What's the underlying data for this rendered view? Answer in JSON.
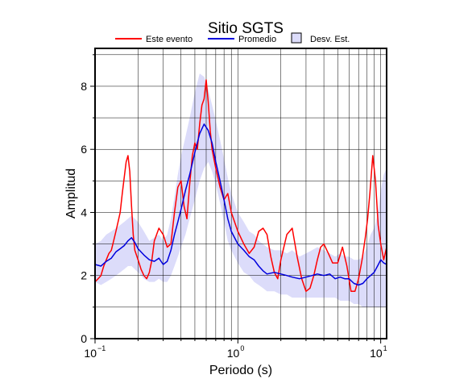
{
  "chart_data": {
    "type": "line",
    "title": "Sitio SGTS",
    "xlabel": "Periodo (s)",
    "ylabel": "Amplitud",
    "xscale": "log",
    "xlim": [
      0.1,
      11
    ],
    "ylim": [
      0,
      9.2
    ],
    "grid": true,
    "legend_position": "top",
    "x_ticks": [
      {
        "base": "10",
        "exp": "−1",
        "value": 0.1
      },
      {
        "base": "10",
        "exp": "0",
        "value": 1
      },
      {
        "base": "10",
        "exp": "1",
        "value": 10
      }
    ],
    "y_ticks": [
      0,
      2,
      4,
      6,
      8
    ],
    "legend": [
      {
        "label": "Este evento",
        "kind": "line",
        "color": "#ff0000"
      },
      {
        "label": "Promedio",
        "kind": "line",
        "color": "#0000dd"
      },
      {
        "label": "Desv. Est.",
        "kind": "box",
        "color": "#dcdcfa"
      }
    ],
    "series": [
      {
        "name": "Este evento",
        "color": "#ff0000",
        "x": [
          0.1,
          0.105,
          0.11,
          0.115,
          0.12,
          0.125,
          0.13,
          0.135,
          0.14,
          0.145,
          0.15,
          0.155,
          0.16,
          0.165,
          0.17,
          0.175,
          0.18,
          0.185,
          0.19,
          0.2,
          0.21,
          0.22,
          0.23,
          0.24,
          0.25,
          0.26,
          0.28,
          0.3,
          0.32,
          0.34,
          0.36,
          0.38,
          0.4,
          0.42,
          0.44,
          0.46,
          0.48,
          0.5,
          0.52,
          0.54,
          0.56,
          0.58,
          0.6,
          0.62,
          0.64,
          0.66,
          0.7,
          0.75,
          0.8,
          0.85,
          0.9,
          1.0,
          1.1,
          1.2,
          1.3,
          1.4,
          1.5,
          1.6,
          1.7,
          1.8,
          1.9,
          2.0,
          2.2,
          2.4,
          2.6,
          2.8,
          3.0,
          3.2,
          3.4,
          3.6,
          3.8,
          4.0,
          4.3,
          4.6,
          5.0,
          5.4,
          5.8,
          6.2,
          6.6,
          7.0,
          7.4,
          7.8,
          8.1,
          8.4,
          8.8,
          9.2,
          9.6,
          10.0,
          10.5,
          11.0
        ],
        "values": [
          1.8,
          1.9,
          2.0,
          2.3,
          2.5,
          2.7,
          2.8,
          3.1,
          3.4,
          3.7,
          4.0,
          4.6,
          5.1,
          5.6,
          5.8,
          5.3,
          4.2,
          3.3,
          2.8,
          2.5,
          2.2,
          2.0,
          1.9,
          2.1,
          2.5,
          3.1,
          3.5,
          3.3,
          2.9,
          3.0,
          4.0,
          4.8,
          5.0,
          4.2,
          3.8,
          4.9,
          5.8,
          6.2,
          6.0,
          6.8,
          7.4,
          7.6,
          8.2,
          7.5,
          6.6,
          6.0,
          5.4,
          4.8,
          4.4,
          4.6,
          4.0,
          3.4,
          3.0,
          2.7,
          2.9,
          3.4,
          3.5,
          3.3,
          2.6,
          2.1,
          1.9,
          2.5,
          3.3,
          3.5,
          2.6,
          1.9,
          1.5,
          1.6,
          2.0,
          2.5,
          2.9,
          3.0,
          2.7,
          2.4,
          2.4,
          2.9,
          2.3,
          1.5,
          1.5,
          1.9,
          2.5,
          3.2,
          3.8,
          4.6,
          5.8,
          5.0,
          3.6,
          3.0,
          2.5,
          2.9
        ]
      },
      {
        "name": "Promedio",
        "color": "#0000dd",
        "x": [
          0.1,
          0.11,
          0.12,
          0.13,
          0.14,
          0.15,
          0.16,
          0.17,
          0.18,
          0.19,
          0.2,
          0.22,
          0.24,
          0.26,
          0.28,
          0.3,
          0.32,
          0.34,
          0.36,
          0.38,
          0.4,
          0.43,
          0.46,
          0.5,
          0.54,
          0.58,
          0.62,
          0.66,
          0.7,
          0.75,
          0.8,
          0.85,
          0.9,
          1.0,
          1.1,
          1.2,
          1.3,
          1.4,
          1.5,
          1.6,
          1.8,
          2.0,
          2.2,
          2.4,
          2.7,
          3.0,
          3.3,
          3.6,
          4.0,
          4.4,
          4.8,
          5.2,
          5.6,
          6.0,
          6.5,
          7.0,
          7.5,
          8.0,
          8.5,
          9.0,
          9.5,
          10.0,
          10.5,
          11.0
        ],
        "values": [
          2.35,
          2.3,
          2.45,
          2.55,
          2.75,
          2.85,
          2.95,
          3.1,
          3.2,
          3.05,
          2.85,
          2.65,
          2.5,
          2.45,
          2.55,
          2.35,
          2.45,
          2.8,
          3.3,
          3.7,
          4.1,
          4.7,
          5.2,
          5.9,
          6.5,
          6.8,
          6.6,
          6.2,
          5.6,
          5.0,
          4.4,
          3.8,
          3.4,
          3.0,
          2.8,
          2.6,
          2.5,
          2.3,
          2.15,
          2.05,
          2.1,
          2.05,
          2.0,
          1.95,
          1.9,
          1.95,
          2.0,
          2.05,
          2.0,
          2.05,
          1.9,
          1.95,
          1.9,
          1.9,
          1.75,
          1.7,
          1.75,
          1.9,
          2.0,
          2.1,
          2.3,
          2.5,
          2.4,
          2.35
        ]
      }
    ],
    "std_band": {
      "x": [
        0.1,
        0.11,
        0.12,
        0.13,
        0.14,
        0.15,
        0.16,
        0.17,
        0.18,
        0.2,
        0.22,
        0.24,
        0.26,
        0.28,
        0.3,
        0.32,
        0.34,
        0.36,
        0.38,
        0.4,
        0.43,
        0.46,
        0.5,
        0.54,
        0.58,
        0.62,
        0.66,
        0.7,
        0.75,
        0.8,
        0.85,
        0.9,
        1.0,
        1.1,
        1.2,
        1.3,
        1.4,
        1.5,
        1.6,
        1.8,
        2.0,
        2.2,
        2.4,
        2.7,
        3.0,
        3.3,
        3.6,
        4.0,
        4.4,
        4.8,
        5.2,
        5.6,
        6.0,
        6.5,
        7.0,
        7.5,
        8.0,
        8.5,
        9.0,
        9.5,
        10.0,
        10.5,
        11.0
      ],
      "upper": [
        3.0,
        3.1,
        3.3,
        3.4,
        3.5,
        3.6,
        3.7,
        3.8,
        3.9,
        3.7,
        3.4,
        3.1,
        3.2,
        3.3,
        3.1,
        3.3,
        3.8,
        4.5,
        5.2,
        5.8,
        6.4,
        7.0,
        7.8,
        8.4,
        8.3,
        7.9,
        7.4,
        6.9,
        6.3,
        5.7,
        5.1,
        4.6,
        4.0,
        3.7,
        3.4,
        3.3,
        3.1,
        3.0,
        2.9,
        2.8,
        2.8,
        2.7,
        2.8,
        2.6,
        2.7,
        2.8,
        2.9,
        2.8,
        2.7,
        2.6,
        2.7,
        2.6,
        2.6,
        2.5,
        2.5,
        2.6,
        2.9,
        3.3,
        3.5,
        3.9,
        4.7,
        5.2,
        5.4
      ],
      "lower": [
        1.8,
        1.7,
        1.8,
        1.9,
        2.0,
        2.1,
        2.2,
        2.3,
        2.3,
        2.1,
        1.9,
        1.8,
        1.8,
        1.9,
        1.8,
        1.8,
        2.0,
        2.3,
        2.6,
        2.9,
        3.3,
        3.8,
        4.4,
        5.0,
        5.4,
        5.6,
        5.3,
        4.9,
        4.3,
        3.7,
        3.1,
        2.8,
        2.4,
        2.1,
        2.0,
        1.8,
        1.7,
        1.6,
        1.5,
        1.5,
        1.4,
        1.4,
        1.3,
        1.3,
        1.3,
        1.3,
        1.3,
        1.3,
        1.3,
        1.3,
        1.2,
        1.2,
        1.2,
        1.1,
        1.1,
        1.0,
        1.0,
        1.0,
        1.0,
        1.0,
        1.0,
        1.0,
        1.0
      ]
    }
  }
}
